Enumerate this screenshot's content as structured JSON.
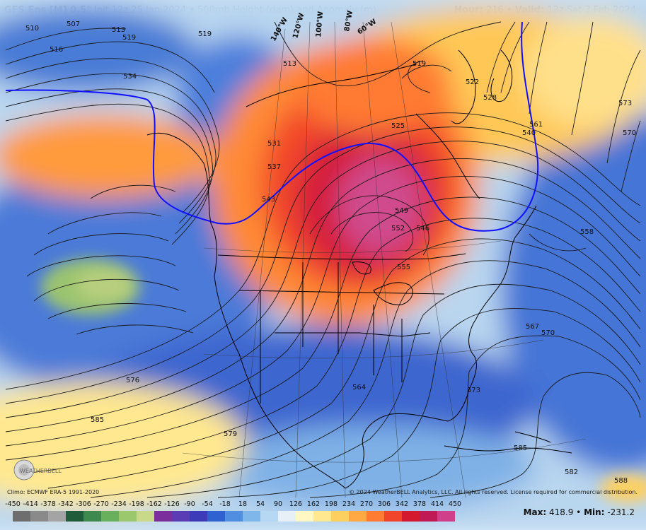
{
  "header": {
    "model": "GFS Ens [M] 0.5",
    "degree": "°",
    "init": "Init 12z 25 Jan 2024",
    "sep": "•",
    "product": "500mb Height (dam) and Anomaly (m)",
    "hour_label": "Hour:",
    "hour": "216",
    "valid_label": "Valid:",
    "valid": "12z Sat 3 Feb 2024"
  },
  "footer": {
    "climo": "Climo: ECMWF ERA-5 1991-2020",
    "copyright": "© 2024 WeatherBELL Analytics, LLC. All rights reserved. License required for commercial distribution.",
    "max_label": "Max:",
    "max": "418.9",
    "min_label": "Min:",
    "min": "-231.2",
    "logo_text": "WEATHERBELL"
  },
  "colorbar": {
    "ticks": [
      "-450",
      "-414",
      "-378",
      "-342",
      "-306",
      "-270",
      "-234",
      "-198",
      "-162",
      "-126",
      "-90",
      "-54",
      "-18",
      "18",
      "54",
      "90",
      "126",
      "162",
      "198",
      "234",
      "270",
      "306",
      "342",
      "378",
      "414",
      "450"
    ],
    "colors": [
      "#6e6e6e",
      "#8a8a8a",
      "#a4a4a4",
      "#1f5d3a",
      "#3e8a4e",
      "#69b05d",
      "#9bc76d",
      "#c9d98a",
      "#7a2f9c",
      "#5a3db5",
      "#3d3cb8",
      "#2f62d0",
      "#4f8ee0",
      "#7fb7ea",
      "#b7d8f2",
      "#e6f0f6",
      "#fff7c4",
      "#ffe88f",
      "#ffd060",
      "#ffa944",
      "#ff7c32",
      "#f0452a",
      "#d4182e",
      "#c01a55",
      "#d0408a"
    ]
  },
  "map_labels": {
    "contours": [
      "510",
      "507",
      "516",
      "513",
      "519",
      "534",
      "519",
      "513",
      "519",
      "522",
      "525",
      "531",
      "537",
      "543",
      "549",
      "552",
      "546",
      "555",
      "561",
      "573",
      "570",
      "558",
      "567",
      "570",
      "576",
      "585",
      "564",
      "573",
      "579",
      "585",
      "528",
      "540",
      "582",
      "588"
    ],
    "lon": [
      "140°W",
      "120°W",
      "100°W",
      "80°W",
      "60°W"
    ]
  },
  "colors": {
    "contour": "#1a1a1a",
    "highlight_contour": "#1010ff",
    "coast": "#000000"
  }
}
